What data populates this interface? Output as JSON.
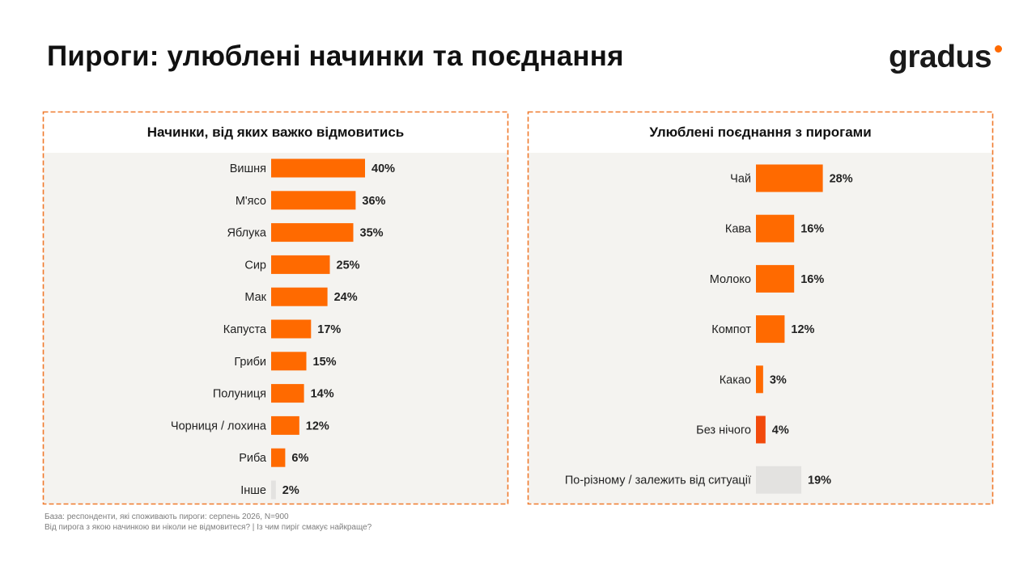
{
  "title": "Пироги: улюблені начинки та поєднання",
  "logo": {
    "text": "gradus",
    "dot_color": "#ff6a00"
  },
  "colors": {
    "primary": "#ff6a00",
    "accent": "#f24a0c",
    "muted": "#e3e2e0",
    "frame": "#f07a2c",
    "panel_bg": "#f4f3f0"
  },
  "chart_data": [
    {
      "type": "bar",
      "orientation": "horizontal",
      "title": "Начинки, від яких важко відмовитись",
      "categories": [
        "Вишня",
        "М'ясо",
        "Яблука",
        "Сир",
        "Мак",
        "Капуста",
        "Гриби",
        "Полуниця",
        "Чорниця / лохина",
        "Риба",
        "Інше"
      ],
      "values": [
        40,
        36,
        35,
        25,
        24,
        17,
        15,
        14,
        12,
        6,
        2
      ],
      "value_labels": [
        "40%",
        "36%",
        "35%",
        "25%",
        "24%",
        "17%",
        "15%",
        "14%",
        "12%",
        "6%",
        "2%"
      ],
      "bar_styles": [
        "primary",
        "primary",
        "primary",
        "primary",
        "primary",
        "primary",
        "primary",
        "primary",
        "primary",
        "primary",
        "muted"
      ],
      "unit": "%",
      "xlim": [
        0,
        100
      ],
      "grid": false,
      "legend": "none"
    },
    {
      "type": "bar",
      "orientation": "horizontal",
      "title": "Улюблені поєднання з пирогами",
      "categories": [
        "Чай",
        "Кава",
        "Молоко",
        "Компот",
        "Какао",
        "Без нічого",
        "По-різному / залежить від ситуації"
      ],
      "values": [
        28,
        16,
        16,
        12,
        3,
        4,
        19
      ],
      "value_labels": [
        "28%",
        "16%",
        "16%",
        "12%",
        "3%",
        "4%",
        "19%"
      ],
      "bar_styles": [
        "primary",
        "primary",
        "primary",
        "primary",
        "primary",
        "accent",
        "muted"
      ],
      "unit": "%",
      "xlim": [
        0,
        100
      ],
      "grid": false,
      "legend": "none"
    }
  ],
  "footnotes": [
    "База: респонденти, які споживають пироги: серпень 2026, N=900",
    "Від пирога з якою начинкою ви ніколи не відмовитеся? | Із чим пиріг смакує найкраще?"
  ]
}
